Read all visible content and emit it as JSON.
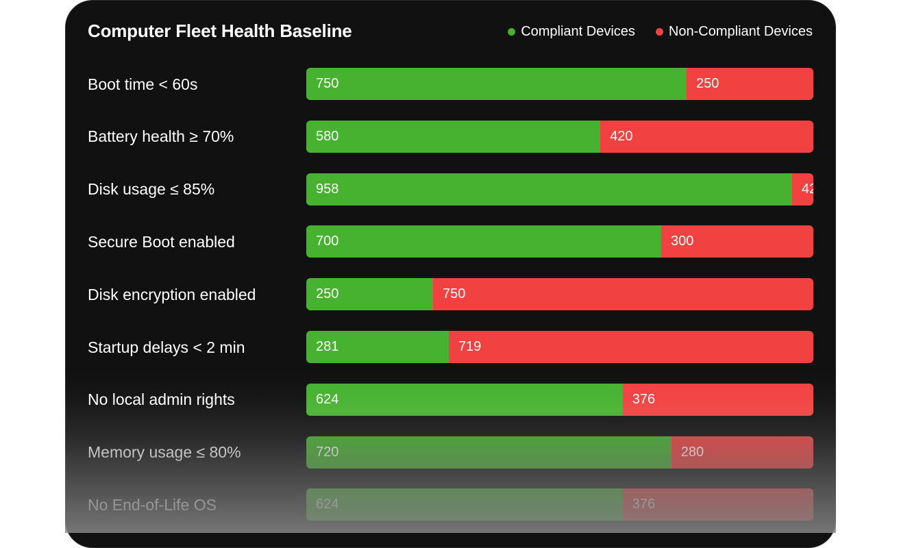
{
  "chart_data": {
    "type": "bar",
    "orientation": "horizontal",
    "stacked": true,
    "title": "Computer Fleet Health Baseline",
    "legend_position": "top-right",
    "grid": false,
    "xlim": [
      0,
      1000
    ],
    "categories": [
      "Boot time < 60s",
      "Battery health ≥ 70%",
      "Disk usage ≤ 85%",
      "Secure Boot enabled",
      "Disk encryption enabled",
      "Startup delays < 2 min",
      "No local admin rights",
      "Memory usage ≤ 80%",
      "No End-of-Life OS"
    ],
    "series": [
      {
        "name": "Compliant Devices",
        "color": "#46b22f",
        "values": [
          750,
          580,
          958,
          700,
          250,
          281,
          624,
          720,
          624
        ]
      },
      {
        "name": "Non-Compliant Devices",
        "color": "#f24141",
        "values": [
          250,
          420,
          42,
          300,
          750,
          719,
          376,
          280,
          376
        ]
      }
    ]
  }
}
